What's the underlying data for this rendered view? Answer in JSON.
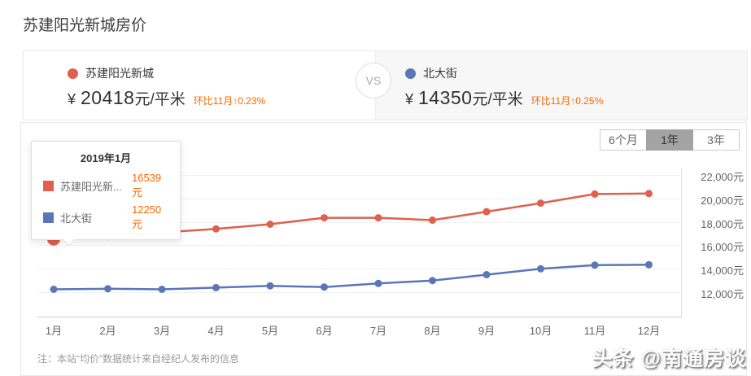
{
  "page": {
    "title": "苏建阳光新城房价"
  },
  "compare": {
    "vs_label": "VS",
    "left": {
      "name": "苏建阳光新城",
      "currency": "¥",
      "price": "20418",
      "unit": "元/平米",
      "change": "环比11月↑0.23%",
      "dot_color": "#e0604e"
    },
    "right": {
      "name": "北大街",
      "currency": "¥",
      "price": "14350",
      "unit": "元/平米",
      "change": "环比11月↑0.25%",
      "dot_color": "#5b76b7"
    }
  },
  "periods": [
    {
      "label": "6个月",
      "selected": false
    },
    {
      "label": "1年",
      "selected": true
    },
    {
      "label": "3年",
      "selected": false
    }
  ],
  "tooltip": {
    "title": "2019年1月",
    "rows": [
      {
        "label": "苏建阳光新...",
        "value": "16539元",
        "color": "#e0604e"
      },
      {
        "label": "北大街",
        "value": "12250元",
        "color": "#5b76b7"
      }
    ]
  },
  "chart_data": {
    "type": "line",
    "x": [
      "1月",
      "2月",
      "3月",
      "4月",
      "5月",
      "6月",
      "7月",
      "8月",
      "9月",
      "10月",
      "11月",
      "12月"
    ],
    "series": [
      {
        "name": "苏建阳光新城",
        "color": "#e0604e",
        "values": [
          16539,
          16750,
          17100,
          17400,
          17800,
          18350,
          18350,
          18150,
          18870,
          19600,
          20371,
          20418
        ]
      },
      {
        "name": "北大街",
        "color": "#5b76b7",
        "values": [
          12250,
          12300,
          12250,
          12400,
          12550,
          12450,
          12750,
          13000,
          13500,
          14000,
          14314,
          14350
        ]
      }
    ],
    "y_tick_labels": [
      "22,000元",
      "20,000元",
      "18,000元",
      "16,000元",
      "14,000元",
      "12,000元"
    ],
    "y_tick_values": [
      22000,
      20000,
      18000,
      16000,
      14000,
      12000
    ],
    "ylim": [
      9930,
      22620
    ],
    "grid": true,
    "legend_position": "tooltip",
    "highlight": {
      "series": 0,
      "index": 0
    }
  },
  "note": "注：本站“均价”数据统计来自经纪人发布的信息",
  "watermark": "头条 @南通房谈"
}
